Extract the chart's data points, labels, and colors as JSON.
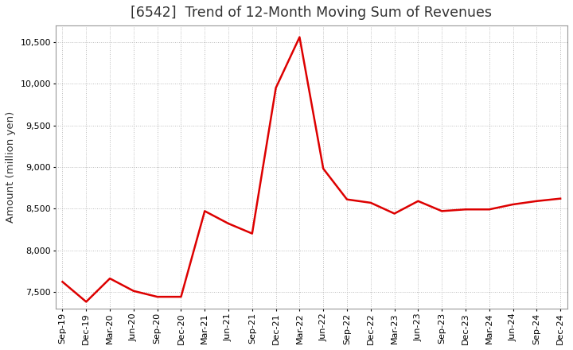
{
  "title": "[6542]  Trend of 12-Month Moving Sum of Revenues",
  "ylabel": "Amount (million yen)",
  "line_color": "#DD0000",
  "background_color": "#FFFFFF",
  "grid_color": "#BBBBBB",
  "spine_color": "#999999",
  "title_color": "#333333",
  "x_labels": [
    "Sep-19",
    "Dec-19",
    "Mar-20",
    "Jun-20",
    "Sep-20",
    "Dec-20",
    "Mar-21",
    "Jun-21",
    "Sep-21",
    "Dec-21",
    "Mar-22",
    "Jun-22",
    "Sep-22",
    "Dec-22",
    "Mar-23",
    "Jun-23",
    "Sep-23",
    "Dec-23",
    "Mar-24",
    "Jun-24",
    "Sep-24",
    "Dec-24"
  ],
  "y_values": [
    7620,
    7380,
    7660,
    7510,
    7440,
    7440,
    8470,
    8320,
    8200,
    9950,
    10560,
    8980,
    8610,
    8570,
    8440,
    8590,
    8470,
    8490,
    8490,
    8550,
    8590,
    8620
  ],
  "ylim": [
    7300,
    10700
  ],
  "yticks": [
    7500,
    8000,
    8500,
    9000,
    9500,
    10000,
    10500
  ],
  "title_fontsize": 12.5,
  "ylabel_fontsize": 9.5,
  "tick_fontsize": 8.0,
  "line_width": 1.8
}
